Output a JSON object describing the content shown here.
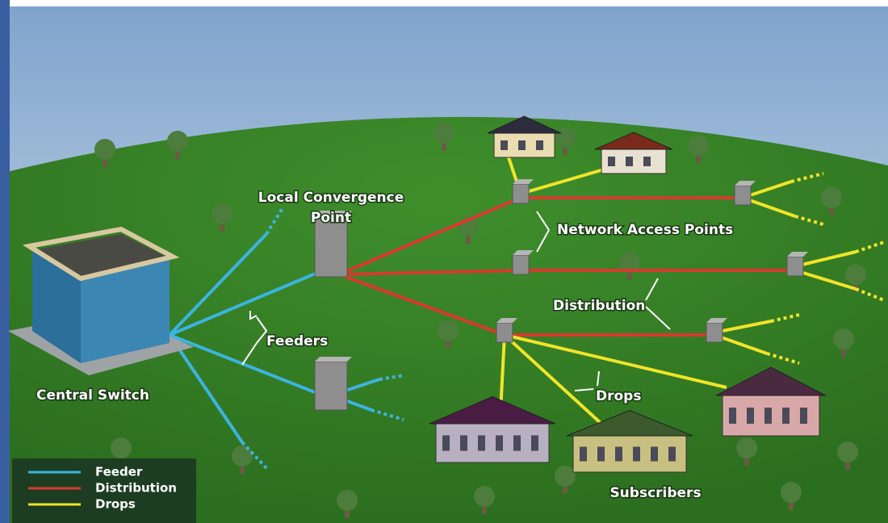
{
  "labels": {
    "local_convergence": [
      "Local Convergence",
      "Point"
    ],
    "network_access_points": "Network Access Points",
    "distribution": "Distribution",
    "feeders": "Feeders",
    "central_switch": "Central Switch",
    "drops": "Drops",
    "subscribers": "Subscribers"
  },
  "legend": {
    "items": [
      {
        "label": "Feeder",
        "color": "#3cb4e0"
      },
      {
        "label": "Distribution",
        "color": "#d83a2e"
      },
      {
        "label": "Drops",
        "color": "#f0e42a"
      }
    ]
  }
}
